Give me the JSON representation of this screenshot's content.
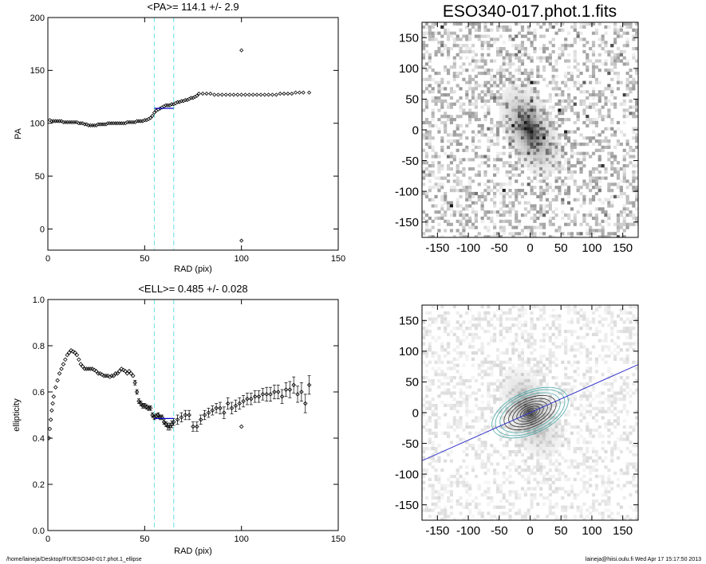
{
  "page": {
    "footer_left": "/home/laineja/Desktop/FIX/ESO340-017.phot.1_ellipse",
    "footer_right": "laineja@hiisi.oulu.fi  Wed Apr 17 15:17:50 2013"
  },
  "colors": {
    "fit_range": "#7fe5e5",
    "fit_line": "#0000cc",
    "axis_line": "#3030c8"
  },
  "chart_data": [
    {
      "id": "pa",
      "type": "scatter",
      "title": "<PA>= 114.1 +/-   2.9",
      "xlabel": "RAD (pix)",
      "ylabel": "PA",
      "xlim": [
        0,
        150
      ],
      "ylim": [
        -20,
        200
      ],
      "xticks": [
        0,
        50,
        100,
        150
      ],
      "yticks": [
        0,
        50,
        100,
        150,
        200
      ],
      "fit_range": [
        55,
        65
      ],
      "mean": 114.1,
      "series": [
        {
          "x": [
            1,
            2,
            3,
            4,
            5,
            6,
            7,
            8,
            9,
            10,
            11,
            12,
            13,
            14,
            15,
            16,
            17,
            18,
            19,
            20,
            21,
            22,
            23,
            24,
            25,
            26,
            27,
            28,
            29,
            30,
            31,
            32,
            33,
            34,
            35,
            36,
            37,
            38,
            39,
            40,
            41,
            42,
            43,
            44,
            45,
            46,
            47,
            48,
            49,
            50,
            51,
            52,
            53,
            54,
            55,
            56,
            57,
            58,
            59,
            60,
            61,
            62,
            63,
            64,
            65,
            66,
            67,
            68,
            69,
            70,
            71,
            72,
            73,
            74,
            75,
            76,
            77,
            78,
            80,
            82,
            84,
            86,
            88,
            90,
            92,
            94,
            96,
            98,
            100,
            100,
            100,
            102,
            104,
            106,
            108,
            110,
            112,
            114,
            116,
            118,
            120,
            122,
            124,
            126,
            128,
            130,
            132,
            135
          ],
          "y": [
            103,
            102,
            102,
            102,
            102,
            102,
            102,
            101,
            101,
            101,
            101,
            101,
            101,
            101,
            101,
            100,
            100,
            100,
            99,
            99,
            98,
            98,
            98,
            98,
            98,
            99,
            99,
            99,
            99,
            99,
            100,
            100,
            100,
            100,
            100,
            100,
            100,
            100,
            100,
            100,
            101,
            101,
            101,
            101,
            101,
            102,
            102,
            102,
            102,
            103,
            103,
            104,
            105,
            107,
            110,
            112,
            113,
            114,
            115,
            116,
            117,
            117,
            117,
            118,
            118,
            119,
            120,
            120,
            121,
            121,
            122,
            122,
            123,
            124,
            124,
            125,
            126,
            128,
            128,
            128,
            128,
            127,
            127,
            127,
            127,
            127,
            127,
            127,
            127,
            169,
            -11,
            127,
            127,
            127,
            127,
            127,
            127,
            127,
            127,
            127,
            128,
            128,
            128,
            128,
            129,
            129,
            129,
            129
          ]
        }
      ]
    },
    {
      "id": "ell",
      "type": "scatter",
      "title": "<ELL>= 0.485 +/-  0.028",
      "xlabel": "RAD (pix)",
      "ylabel": "ellipticity",
      "xlim": [
        0,
        150
      ],
      "ylim": [
        0.0,
        1.0
      ],
      "xticks": [
        0,
        50,
        100,
        150
      ],
      "yticks": [
        0.0,
        0.2,
        0.4,
        0.6,
        0.8,
        1.0
      ],
      "ytick_labels": [
        "0.0",
        "0.2",
        "0.4",
        "0.6",
        "0.8",
        "1.0"
      ],
      "fit_range": [
        55,
        65
      ],
      "mean": 0.485,
      "series": [
        {
          "x": [
            0.5,
            1,
            1.5,
            2,
            2.5,
            3,
            4,
            5,
            6,
            7,
            8,
            9,
            10,
            11,
            12,
            13,
            14,
            15,
            16,
            17,
            18,
            19,
            20,
            21,
            22,
            23,
            24,
            25,
            26,
            27,
            28,
            29,
            30,
            31,
            32,
            33,
            34,
            35,
            36,
            37,
            38,
            39,
            40,
            41,
            42,
            43,
            44,
            45,
            46,
            47,
            48,
            49,
            50,
            51,
            52,
            53,
            54,
            55,
            56,
            57,
            58,
            59,
            60,
            61,
            62,
            63,
            64,
            65,
            67,
            69,
            71,
            73,
            75,
            77,
            79,
            81,
            83,
            85,
            87,
            89,
            91,
            93,
            95,
            97,
            99,
            100,
            101,
            103,
            105,
            107,
            109,
            111,
            113,
            115,
            117,
            119,
            121,
            123,
            125,
            127,
            129,
            131,
            133,
            135
          ],
          "y": [
            0.4,
            0.44,
            0.48,
            0.52,
            0.55,
            0.58,
            0.62,
            0.65,
            0.68,
            0.7,
            0.72,
            0.74,
            0.76,
            0.77,
            0.78,
            0.775,
            0.77,
            0.76,
            0.74,
            0.72,
            0.71,
            0.7,
            0.7,
            0.7,
            0.7,
            0.7,
            0.695,
            0.69,
            0.68,
            0.68,
            0.675,
            0.67,
            0.67,
            0.67,
            0.665,
            0.67,
            0.67,
            0.68,
            0.68,
            0.69,
            0.7,
            0.695,
            0.69,
            0.68,
            0.69,
            0.68,
            0.67,
            0.64,
            0.6,
            0.56,
            0.55,
            0.54,
            0.54,
            0.535,
            0.53,
            0.53,
            0.5,
            0.49,
            0.495,
            0.5,
            0.49,
            0.49,
            0.47,
            0.46,
            0.45,
            0.45,
            0.46,
            0.47,
            0.48,
            0.49,
            0.5,
            0.5,
            0.45,
            0.45,
            0.48,
            0.5,
            0.51,
            0.52,
            0.53,
            0.53,
            0.51,
            0.55,
            0.53,
            0.54,
            0.55,
            0.45,
            0.56,
            0.57,
            0.57,
            0.58,
            0.58,
            0.59,
            0.59,
            0.59,
            0.6,
            0.6,
            0.58,
            0.61,
            0.61,
            0.63,
            0.59,
            0.6,
            0.55,
            0.63
          ],
          "err": [
            0.005,
            0.005,
            0.005,
            0.005,
            0.005,
            0.005,
            0.005,
            0.005,
            0.005,
            0.005,
            0.005,
            0.005,
            0.005,
            0.005,
            0.005,
            0.005,
            0.005,
            0.005,
            0.005,
            0.005,
            0.005,
            0.005,
            0.005,
            0.005,
            0.005,
            0.005,
            0.005,
            0.005,
            0.005,
            0.005,
            0.005,
            0.005,
            0.005,
            0.005,
            0.005,
            0.005,
            0.005,
            0.005,
            0.005,
            0.005,
            0.005,
            0.005,
            0.005,
            0.005,
            0.005,
            0.005,
            0.005,
            0.01,
            0.01,
            0.01,
            0.01,
            0.01,
            0.01,
            0.01,
            0.01,
            0.01,
            0.01,
            0.01,
            0.01,
            0.01,
            0.01,
            0.01,
            0.01,
            0.01,
            0.015,
            0.015,
            0.015,
            0.015,
            0.02,
            0.02,
            0.02,
            0.02,
            0.02,
            0.02,
            0.02,
            0.02,
            0.02,
            0.02,
            0.02,
            0.025,
            0.025,
            0.025,
            0.025,
            0.025,
            0.025,
            0.005,
            0.025,
            0.025,
            0.025,
            0.025,
            0.025,
            0.025,
            0.03,
            0.03,
            0.03,
            0.03,
            0.03,
            0.03,
            0.035,
            0.035,
            0.035,
            0.04,
            0.04,
            0.04
          ]
        }
      ]
    },
    {
      "id": "img1",
      "type": "heatmap",
      "title": "ESO340-017.phot.1.fits",
      "xlim": [
        -175,
        175
      ],
      "ylim": [
        -175,
        175
      ],
      "xticks": [
        -150,
        -100,
        -50,
        0,
        50,
        100,
        150
      ],
      "yticks": [
        -150,
        -100,
        -50,
        0,
        50,
        100,
        150
      ],
      "galaxy": {
        "pa_deg": 114.1,
        "ellipticity": 0.485,
        "center": [
          0,
          0
        ]
      }
    },
    {
      "id": "img2",
      "type": "heatmap",
      "title": "",
      "xlim": [
        -175,
        175
      ],
      "ylim": [
        -175,
        175
      ],
      "xticks": [
        -150,
        -100,
        -50,
        0,
        50,
        100,
        150
      ],
      "yticks": [
        -150,
        -100,
        -50,
        0,
        50,
        100,
        150
      ],
      "galaxy": {
        "pa_deg": 114.1,
        "ellipticity": 0.485,
        "center": [
          0,
          0
        ]
      },
      "major_axis_line": {
        "angle_deg": 24.1
      }
    }
  ]
}
